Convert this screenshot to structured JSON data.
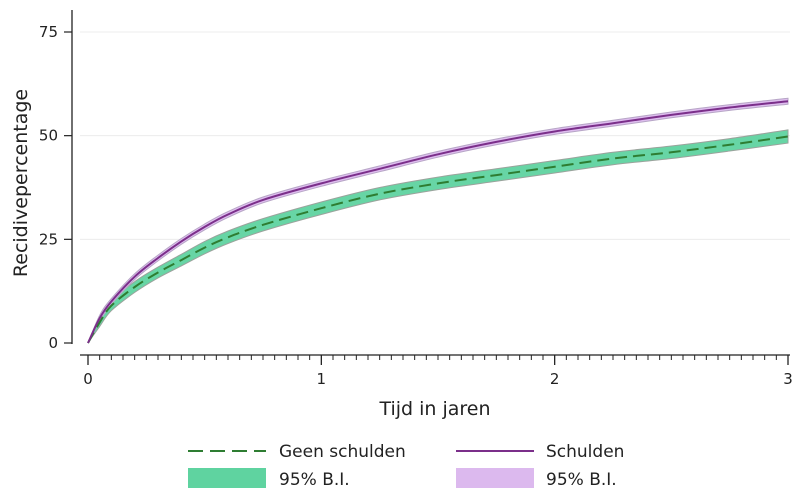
{
  "chart_data": {
    "type": "line",
    "title": "",
    "xlabel": "Tijd in jaren",
    "ylabel": "Recidivepercentage",
    "xlim": [
      0,
      3
    ],
    "ylim": [
      0,
      75
    ],
    "xticks": [
      "0",
      "1",
      "2",
      "3"
    ],
    "yticks": [
      "0",
      "25",
      "50",
      "75"
    ],
    "grid": "horizontal",
    "legend_position": "bottom",
    "x": [
      0,
      0.05,
      0.1,
      0.2,
      0.3,
      0.4,
      0.5,
      0.6,
      0.75,
      1.0,
      1.25,
      1.5,
      1.75,
      2.0,
      2.25,
      2.5,
      2.75,
      3.0
    ],
    "series": [
      {
        "name": "Geen schulden",
        "style": "dashed",
        "color": "#2e7d32",
        "values": [
          0,
          5,
          9,
          13.5,
          17,
          20,
          23,
          25.5,
          28.5,
          32.5,
          36,
          38.5,
          40.5,
          42.5,
          44.5,
          46,
          47.8,
          49.8
        ],
        "ci_label": "95% B.I.",
        "ci_color": "#5fd3a0",
        "ci_lower": [
          0,
          4,
          7.8,
          12.2,
          15.7,
          18.6,
          21.5,
          24,
          27,
          31,
          34.5,
          37,
          39,
          41,
          43,
          44.5,
          46.3,
          48.2
        ],
        "ci_upper": [
          0,
          6,
          10.2,
          14.8,
          18.3,
          21.4,
          24.5,
          27,
          30,
          34,
          37.5,
          40,
          42,
          44,
          46,
          47.5,
          49.3,
          51.4
        ]
      },
      {
        "name": "Schulden",
        "style": "solid",
        "color": "#7b2f8a",
        "values": [
          0,
          6,
          10,
          16,
          20.5,
          24.5,
          28,
          31,
          34.5,
          38.5,
          42,
          45.5,
          48.5,
          51,
          53,
          55,
          56.8,
          58.3
        ],
        "ci_label": "95% B.I.",
        "ci_color": "#dcb9ee",
        "ci_lower": [
          0,
          5.3,
          9.3,
          15.3,
          19.8,
          23.8,
          27.3,
          30.3,
          33.8,
          37.8,
          41.3,
          44.8,
          47.8,
          50.3,
          52.3,
          54.3,
          56.1,
          57.6
        ],
        "ci_upper": [
          0,
          6.7,
          10.7,
          16.7,
          21.2,
          25.2,
          28.7,
          31.7,
          35.2,
          39.2,
          42.7,
          46.2,
          49.2,
          51.7,
          53.7,
          55.7,
          57.5,
          59
        ]
      }
    ],
    "legend": [
      {
        "label": "Geen schulden",
        "kind": "dashed-line",
        "color": "#2e7d32"
      },
      {
        "label": "Schulden",
        "kind": "solid-line",
        "color": "#7b2f8a"
      },
      {
        "label": "95% B.I.",
        "kind": "band",
        "color": "#5fd3a0"
      },
      {
        "label": "95% B.I.",
        "kind": "band",
        "color": "#dcb9ee"
      }
    ]
  }
}
